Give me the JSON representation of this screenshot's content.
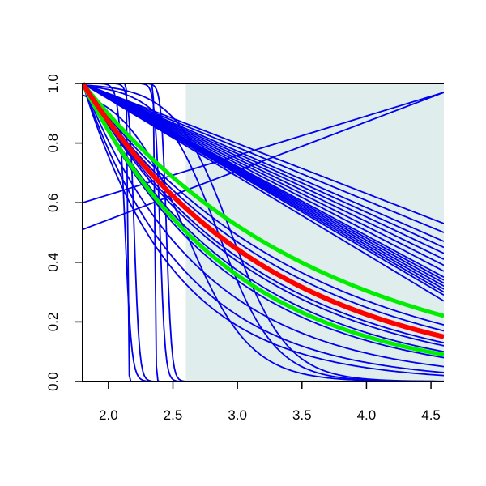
{
  "chart_data": {
    "type": "line",
    "title": "",
    "xlabel": "",
    "ylabel": "",
    "xlim": [
      1.8,
      4.6
    ],
    "ylim": [
      0.0,
      1.0
    ],
    "grid": false,
    "x_ticks": [
      2.0,
      2.5,
      3.0,
      3.5,
      4.0,
      4.5
    ],
    "x_tick_labels": [
      "2.0",
      "2.5",
      "3.0",
      "3.5",
      "4.0",
      "4.5"
    ],
    "y_ticks": [
      0.0,
      0.2,
      0.4,
      0.6,
      0.8,
      1.0
    ],
    "y_tick_labels": [
      "0.0",
      "0.2",
      "0.4",
      "0.6",
      "0.8",
      "1.0"
    ],
    "shaded_region": {
      "x_from": 2.6,
      "x_to": 4.6,
      "color": "#dfeded"
    },
    "colors": {
      "blue": "#0000ee",
      "red": "#ff0000",
      "green": "#00ee00",
      "axis": "#000000"
    },
    "curves": {
      "x_start": 1.8,
      "blue_linear": [
        {
          "end": 0.53
        },
        {
          "end": 0.5
        },
        {
          "end": 0.47
        },
        {
          "end": 0.45
        },
        {
          "end": 0.43
        },
        {
          "end": 0.41
        },
        {
          "end": 0.39
        },
        {
          "end": 0.37
        },
        {
          "end": 0.35
        },
        {
          "end": 0.33
        },
        {
          "end": 0.31
        },
        {
          "end": 0.29
        },
        {
          "end": 0.27
        },
        {
          "end": 0.3
        },
        {
          "end": 0.34
        },
        {
          "end": 0.32
        }
      ],
      "blue_exponential": [
        {
          "end": 0.22
        },
        {
          "end": 0.19
        },
        {
          "end": 0.17
        },
        {
          "end": 0.15
        },
        {
          "end": 0.13
        },
        {
          "end": 0.12
        },
        {
          "end": 0.1
        },
        {
          "end": 0.08
        },
        {
          "end": 0.05
        },
        {
          "end": 0.03
        },
        {
          "end": 0.02
        }
      ],
      "blue_logistic": [
        {
          "mid": 2.85,
          "scale": 0.22
        },
        {
          "mid": 2.95,
          "scale": 0.22
        },
        {
          "mid": 2.6,
          "scale": 0.25
        }
      ],
      "blue_step": [
        {
          "mid": 2.15,
          "scale": 0.003
        },
        {
          "mid": 2.2,
          "scale": 0.02
        },
        {
          "mid": 2.36,
          "scale": 0.004
        },
        {
          "mid": 2.4,
          "scale": 0.02
        },
        {
          "mid": 2.45,
          "scale": 0.02
        },
        {
          "mid": 2.13,
          "scale": 0.025
        }
      ],
      "blue_rising": [
        {
          "y_start": 0.6,
          "y_end": 0.97
        },
        {
          "y_start": 0.51,
          "y_end": 0.97
        }
      ],
      "red": {
        "end": 0.15
      },
      "green": [
        {
          "end": 0.22
        },
        {
          "end": 0.09
        }
      ]
    }
  }
}
